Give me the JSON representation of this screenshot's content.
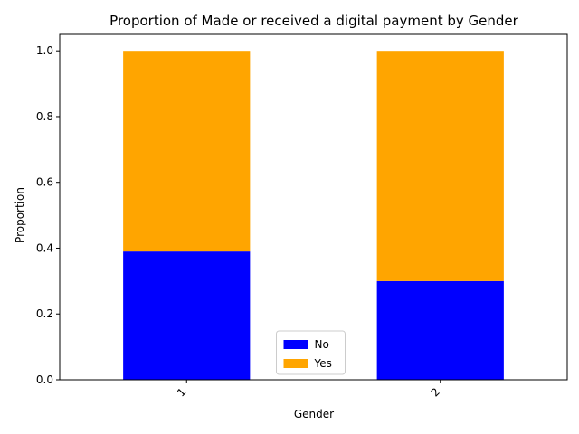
{
  "chart_data": {
    "type": "bar",
    "stacked": true,
    "title": "Proportion of Made or received a digital payment by Gender",
    "xlabel": "Gender",
    "ylabel": "Proportion",
    "categories": [
      "1",
      "2"
    ],
    "series": [
      {
        "name": "No",
        "values": [
          0.39,
          0.3
        ],
        "color": "#0000ff"
      },
      {
        "name": "Yes",
        "values": [
          0.61,
          0.7
        ],
        "color": "#ffa500"
      }
    ],
    "ylim": [
      0,
      1.05
    ],
    "yticks": [
      "0.0",
      "0.2",
      "0.4",
      "0.6",
      "0.8",
      "1.0"
    ],
    "legend_position": "bottom-center",
    "grid": false
  }
}
